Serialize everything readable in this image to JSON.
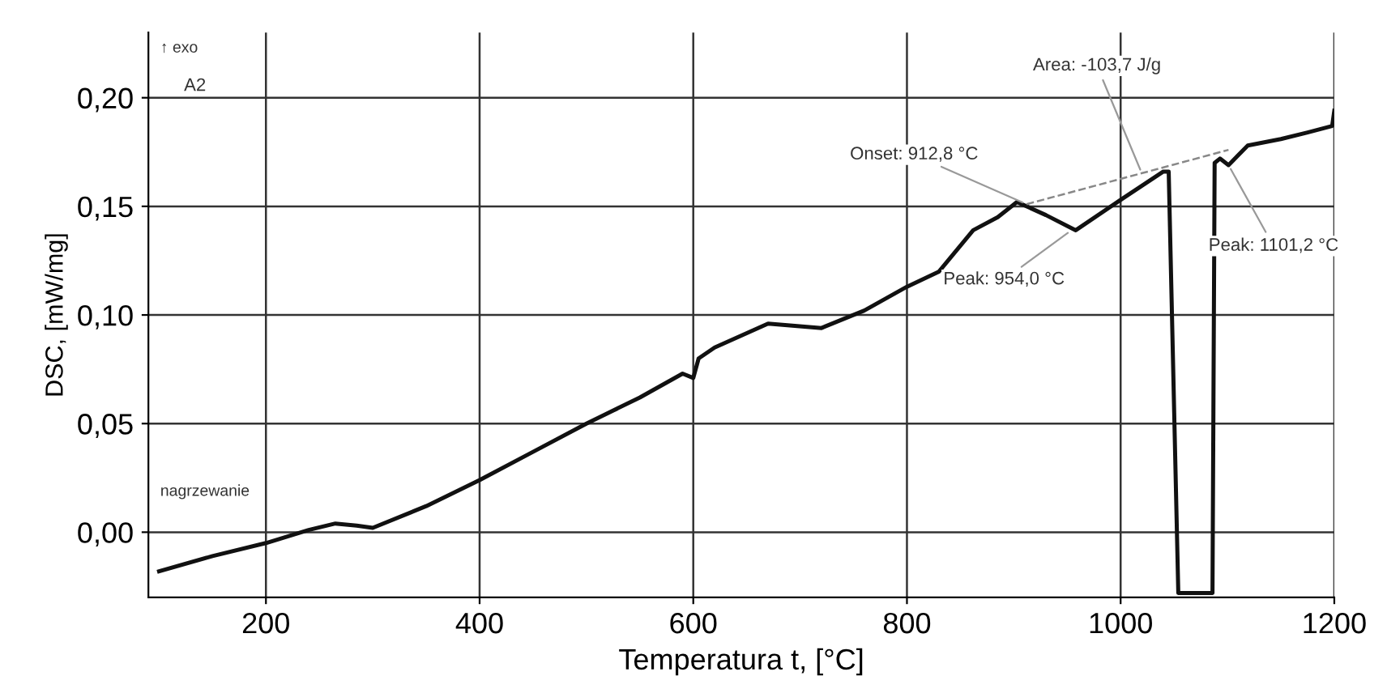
{
  "chart_data": {
    "type": "line",
    "xlabel": "Temperatura t, [°C]",
    "ylabel": "DSC, [mW/mg]",
    "xlim": [
      90,
      1200
    ],
    "ylim": [
      -0.03,
      0.23
    ],
    "xticks": [
      200,
      400,
      600,
      800,
      1000,
      1200
    ],
    "yticks": [
      {
        "value": 0,
        "label": "0,00"
      },
      {
        "value": 0.05,
        "label": "0,05"
      },
      {
        "value": 0.1,
        "label": "0,10"
      },
      {
        "value": 0.15,
        "label": "0,15"
      },
      {
        "value": 0.2,
        "label": "0,20"
      }
    ],
    "grid": true,
    "legend": false,
    "series": [
      {
        "color": "#111111",
        "line_style": "solid",
        "x": [
          100,
          150,
          200,
          240,
          265,
          285,
          300,
          350,
          400,
          450,
          500,
          550,
          590,
          600,
          605,
          620,
          670,
          720,
          760,
          800,
          830,
          862,
          885,
          903,
          930,
          958,
          1000,
          1040,
          1045,
          1054,
          1086,
          1088,
          1093,
          1101,
          1119,
          1150,
          1175,
          1198,
          1200
        ],
        "values": [
          -0.018,
          -0.011,
          -0.005,
          0.001,
          0.004,
          0.003,
          0.002,
          0.012,
          0.024,
          0.037,
          0.05,
          0.062,
          0.073,
          0.071,
          0.08,
          0.085,
          0.096,
          0.094,
          0.102,
          0.113,
          0.12,
          0.139,
          0.145,
          0.152,
          0.146,
          0.139,
          0.153,
          0.166,
          0.166,
          -0.028,
          -0.028,
          0.17,
          0.172,
          0.169,
          0.178,
          0.181,
          0.184,
          0.187,
          0.194
        ]
      },
      {
        "color": "#888888",
        "line_style": "dashed",
        "x": [
          912,
          1101
        ],
        "values": [
          0.151,
          0.176
        ]
      }
    ],
    "annotations": [
      "↑ exo",
      "A2",
      "nagrzewanie",
      {
        "text": "Onset: 912,8 °C",
        "x": 912,
        "y": 0.151
      },
      {
        "text": "Peak: 954,0 °C",
        "x": 954,
        "y": 0.139
      },
      {
        "text": "Area: -103,7 J/g",
        "x": 1020,
        "y": 0.165
      },
      {
        "text": "Peak: 1101,2 °C",
        "x": 1101,
        "y": 0.169
      }
    ]
  }
}
